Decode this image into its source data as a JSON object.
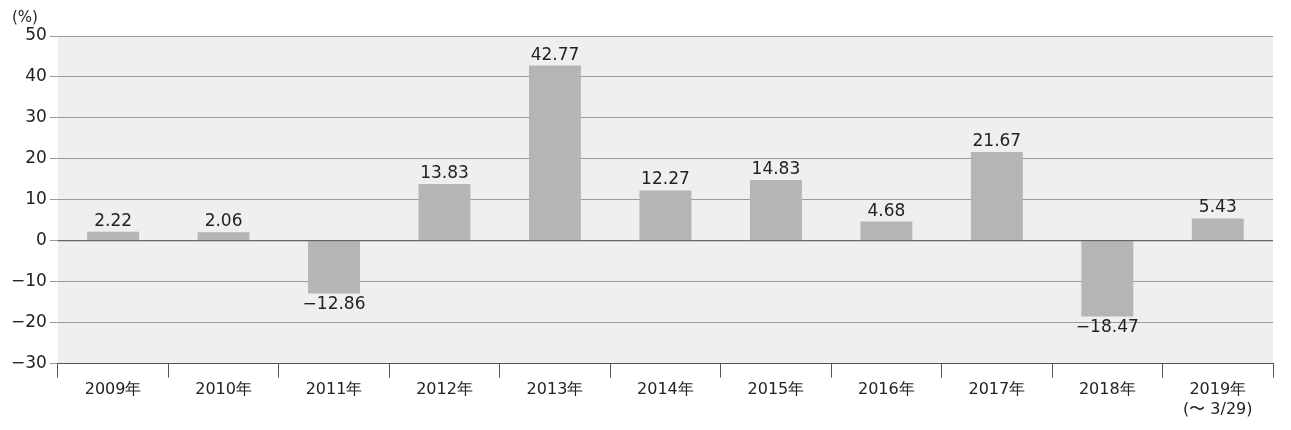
{
  "chart_data": {
    "type": "bar",
    "ylabel": "(%)",
    "categories": [
      "2009年",
      "2010年",
      "2011年",
      "2012年",
      "2013年",
      "2014年",
      "2015年",
      "2016年",
      "2017年",
      "2018年",
      "2019年\n(〜 3/29)"
    ],
    "values": [
      2.22,
      2.06,
      -12.86,
      13.83,
      42.77,
      12.27,
      14.83,
      4.68,
      21.67,
      -18.47,
      5.43
    ],
    "color": "#b5b5b5",
    "ylim": [
      -30,
      50
    ],
    "yticks": [
      -30,
      -20,
      -10,
      0,
      10,
      20,
      30,
      40,
      50
    ],
    "grid": "y",
    "data_labels": true,
    "legend": false
  }
}
